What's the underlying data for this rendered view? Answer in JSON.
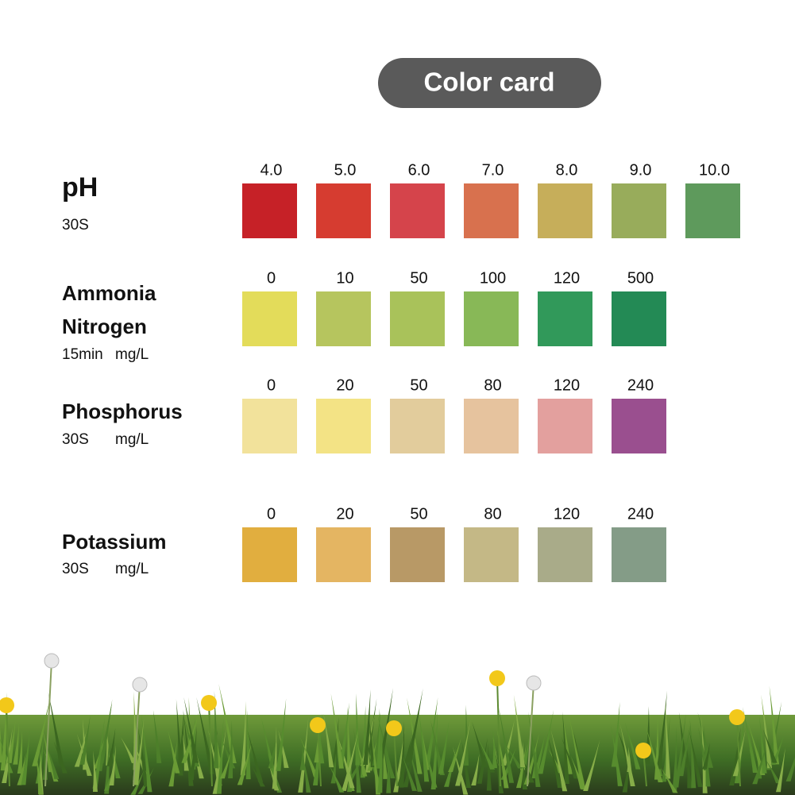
{
  "header": {
    "title": "Color card"
  },
  "sections": [
    {
      "name_lines": [
        "pH"
      ],
      "notes": [
        "30S"
      ],
      "swatches": [
        {
          "label": "4.0",
          "color": "#c62127"
        },
        {
          "label": "5.0",
          "color": "#d63c30"
        },
        {
          "label": "6.0",
          "color": "#d5444b"
        },
        {
          "label": "7.0",
          "color": "#d8714e"
        },
        {
          "label": "8.0",
          "color": "#c6ae5a"
        },
        {
          "label": "9.0",
          "color": "#98ac5b"
        },
        {
          "label": "10.0",
          "color": "#5e9a5c"
        }
      ]
    },
    {
      "name_lines": [
        "Ammonia",
        "Nitrogen"
      ],
      "notes": [
        "15min",
        "mg/L"
      ],
      "swatches": [
        {
          "label": "0",
          "color": "#e3dc5a"
        },
        {
          "label": "10",
          "color": "#b6c55e"
        },
        {
          "label": "50",
          "color": "#a9c25a"
        },
        {
          "label": "100",
          "color": "#88b857"
        },
        {
          "label": "120",
          "color": "#31995a"
        },
        {
          "label": "500",
          "color": "#238a55"
        }
      ]
    },
    {
      "name_lines": [
        "Phosphorus"
      ],
      "notes": [
        "30S",
        "mg/L"
      ],
      "swatches": [
        {
          "label": "0",
          "color": "#f2e29b"
        },
        {
          "label": "20",
          "color": "#f3e385"
        },
        {
          "label": "50",
          "color": "#e2cc9c"
        },
        {
          "label": "80",
          "color": "#e6c39e"
        },
        {
          "label": "120",
          "color": "#e3a09e"
        },
        {
          "label": "240",
          "color": "#9a4f8f"
        }
      ]
    },
    {
      "name_lines": [
        "Potassium"
      ],
      "notes": [
        "30S",
        "mg/L"
      ],
      "swatches": [
        {
          "label": "0",
          "color": "#e1ae3f"
        },
        {
          "label": "20",
          "color": "#e4b562"
        },
        {
          "label": "50",
          "color": "#b89966"
        },
        {
          "label": "80",
          "color": "#c4b886"
        },
        {
          "label": "120",
          "color": "#a9ab89"
        },
        {
          "label": "240",
          "color": "#849c87"
        }
      ]
    }
  ]
}
